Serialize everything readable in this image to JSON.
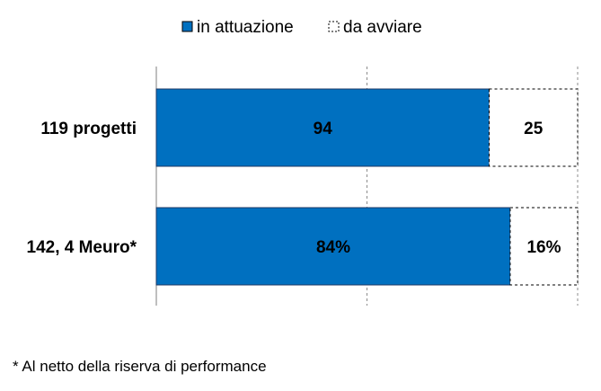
{
  "chart_data": {
    "type": "bar",
    "orientation": "horizontal",
    "stacked": true,
    "categories": [
      "119 progetti",
      "142, 4 Meuro*"
    ],
    "series": [
      {
        "name": "in attuazione",
        "color": "#0070C0",
        "style": "filled",
        "segment_fraction": [
          0.79,
          0.84
        ],
        "labels": [
          "94",
          "84%"
        ]
      },
      {
        "name": "da avviare",
        "color": "#ffffff",
        "style": "dashed-outline",
        "segment_fraction": [
          0.21,
          0.16
        ],
        "labels": [
          "25",
          "16%"
        ]
      }
    ],
    "xlim": [
      0,
      1
    ],
    "grid": "vertical",
    "legend": "top-center"
  },
  "footnote": "* Al netto della riserva di performance"
}
